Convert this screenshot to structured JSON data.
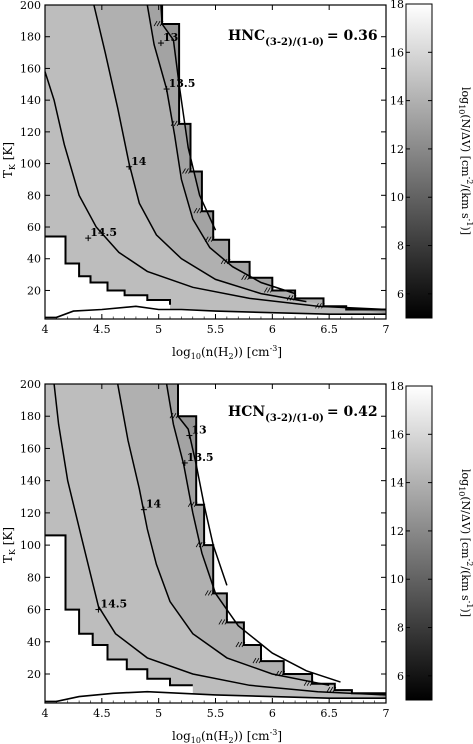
{
  "chart_data": [
    {
      "type": "contour",
      "title": "",
      "annotation": {
        "species": "HNC",
        "subscript": "(3-2)/(1-0)",
        "value": "= 0.36"
      },
      "xlabel": {
        "pre": "log",
        "sub1": "10",
        "mid": "(n(H",
        "sub2": "2",
        "post": ")) [cm",
        "sup": "-3",
        "end": "]"
      },
      "ylabel": {
        "pre": "T",
        "sub": "K",
        "post": " [K]"
      },
      "xlim": [
        4,
        7
      ],
      "ylim": [
        2,
        200
      ],
      "xticks": [
        "4",
        "4.5",
        "5",
        "5.5",
        "6",
        "6.5",
        "7"
      ],
      "yticks": [
        "20",
        "40",
        "60",
        "80",
        "100",
        "120",
        "140",
        "160",
        "180",
        "200"
      ],
      "contour_levels": [
        {
          "label": "13",
          "x": 5.02,
          "y": 176
        },
        {
          "label": "13.5",
          "x": 5.07,
          "y": 147
        },
        {
          "label": "14",
          "x": 4.74,
          "y": 98
        },
        {
          "label": "14.5",
          "x": 4.38,
          "y": 53
        }
      ],
      "boundary_low": [
        [
          4.0,
          3
        ],
        [
          4.1,
          3
        ],
        [
          4.25,
          7
        ],
        [
          4.5,
          8
        ],
        [
          4.8,
          10
        ],
        [
          5.0,
          8
        ],
        [
          5.2,
          8
        ],
        [
          5.5,
          7
        ],
        [
          6.0,
          6
        ],
        [
          6.5,
          5
        ],
        [
          7.0,
          5
        ]
      ],
      "boundary_left": [
        [
          4.0,
          54
        ],
        [
          4.18,
          54
        ],
        [
          4.18,
          37
        ],
        [
          4.3,
          37
        ],
        [
          4.3,
          29
        ],
        [
          4.4,
          29
        ],
        [
          4.4,
          25
        ],
        [
          4.55,
          25
        ],
        [
          4.55,
          20
        ],
        [
          4.7,
          20
        ],
        [
          4.7,
          17
        ],
        [
          4.9,
          17
        ],
        [
          4.9,
          14
        ],
        [
          5.1,
          14
        ],
        [
          5.1,
          11
        ]
      ],
      "boundary_right": [
        [
          5.03,
          200
        ],
        [
          5.03,
          188
        ],
        [
          5.18,
          188
        ],
        [
          5.18,
          125
        ],
        [
          5.28,
          125
        ],
        [
          5.28,
          95
        ],
        [
          5.38,
          95
        ],
        [
          5.38,
          70
        ],
        [
          5.48,
          70
        ],
        [
          5.48,
          52
        ],
        [
          5.62,
          52
        ],
        [
          5.62,
          38
        ],
        [
          5.8,
          38
        ],
        [
          5.8,
          28
        ],
        [
          6.0,
          28
        ],
        [
          6.0,
          20
        ],
        [
          6.2,
          20
        ],
        [
          6.2,
          15
        ],
        [
          6.45,
          15
        ],
        [
          6.45,
          10
        ],
        [
          6.65,
          10
        ],
        [
          6.65,
          8
        ],
        [
          7.0,
          8
        ]
      ],
      "contours": [
        [
          [
            4.0,
            158
          ],
          [
            4.08,
            140
          ],
          [
            4.17,
            112
          ],
          [
            4.3,
            80
          ],
          [
            4.45,
            60
          ],
          [
            4.65,
            44
          ],
          [
            4.9,
            32
          ],
          [
            5.3,
            22
          ],
          [
            5.8,
            15
          ],
          [
            6.4,
            10
          ],
          [
            7.0,
            8
          ]
        ],
        [
          [
            4.43,
            200
          ],
          [
            4.53,
            170
          ],
          [
            4.64,
            135
          ],
          [
            4.74,
            100
          ],
          [
            4.83,
            75
          ],
          [
            4.98,
            55
          ],
          [
            5.2,
            40
          ],
          [
            5.5,
            27
          ],
          [
            5.9,
            18
          ],
          [
            6.3,
            13
          ]
        ],
        [
          [
            4.9,
            200
          ],
          [
            4.96,
            175
          ],
          [
            5.07,
            147
          ],
          [
            5.14,
            118
          ],
          [
            5.2,
            90
          ],
          [
            5.3,
            65
          ],
          [
            5.45,
            47
          ],
          [
            5.65,
            35
          ],
          [
            5.9,
            25
          ],
          [
            6.2,
            18
          ]
        ],
        [
          [
            5.02,
            200
          ],
          [
            5.03,
            188
          ],
          [
            5.13,
            178
          ],
          [
            5.18,
            150
          ],
          [
            5.26,
            110
          ],
          [
            5.36,
            80
          ],
          [
            5.5,
            58
          ]
        ]
      ]
    },
    {
      "type": "contour",
      "title": "",
      "annotation": {
        "species": "HCN",
        "subscript": "(3-2)/(1-0)",
        "value": "= 0.42"
      },
      "xlabel": {
        "pre": "log",
        "sub1": "10",
        "mid": "(n(H",
        "sub2": "2",
        "post": ")) [cm",
        "sup": "-3",
        "end": "]"
      },
      "ylabel": {
        "pre": "T",
        "sub": "K",
        "post": " [K]"
      },
      "xlim": [
        4,
        7
      ],
      "ylim": [
        2,
        200
      ],
      "xticks": [
        "4",
        "4.5",
        "5",
        "5.5",
        "6",
        "6.5",
        "7"
      ],
      "yticks": [
        "20",
        "40",
        "60",
        "80",
        "100",
        "120",
        "140",
        "160",
        "180",
        "200"
      ],
      "contour_levels": [
        {
          "label": "13",
          "x": 5.27,
          "y": 168
        },
        {
          "label": "13.5",
          "x": 5.23,
          "y": 151
        },
        {
          "label": "14",
          "x": 4.87,
          "y": 122
        },
        {
          "label": "14.5",
          "x": 4.47,
          "y": 60
        }
      ],
      "boundary_low": [
        [
          4.0,
          3
        ],
        [
          4.1,
          3
        ],
        [
          4.3,
          6
        ],
        [
          4.6,
          8
        ],
        [
          4.9,
          9
        ],
        [
          5.2,
          8
        ],
        [
          5.5,
          7
        ],
        [
          6.0,
          6
        ],
        [
          6.5,
          5
        ],
        [
          7.0,
          5
        ]
      ],
      "boundary_left": [
        [
          4.0,
          106
        ],
        [
          4.18,
          106
        ],
        [
          4.18,
          60
        ],
        [
          4.3,
          60
        ],
        [
          4.3,
          45
        ],
        [
          4.42,
          45
        ],
        [
          4.42,
          38
        ],
        [
          4.55,
          38
        ],
        [
          4.55,
          29
        ],
        [
          4.72,
          29
        ],
        [
          4.72,
          23
        ],
        [
          4.9,
          23
        ],
        [
          4.9,
          17
        ],
        [
          5.1,
          17
        ],
        [
          5.1,
          13
        ],
        [
          5.3,
          13
        ]
      ],
      "boundary_right": [
        [
          5.17,
          200
        ],
        [
          5.17,
          180
        ],
        [
          5.33,
          180
        ],
        [
          5.33,
          125
        ],
        [
          5.4,
          125
        ],
        [
          5.4,
          100
        ],
        [
          5.48,
          100
        ],
        [
          5.48,
          70
        ],
        [
          5.6,
          70
        ],
        [
          5.6,
          52
        ],
        [
          5.75,
          52
        ],
        [
          5.75,
          38
        ],
        [
          5.9,
          38
        ],
        [
          5.9,
          28
        ],
        [
          6.1,
          28
        ],
        [
          6.1,
          20
        ],
        [
          6.35,
          20
        ],
        [
          6.35,
          14
        ],
        [
          6.55,
          14
        ],
        [
          6.55,
          10
        ],
        [
          6.7,
          10
        ],
        [
          6.7,
          8
        ],
        [
          7.0,
          8
        ]
      ],
      "contours": [
        [
          [
            4.08,
            200
          ],
          [
            4.12,
            175
          ],
          [
            4.2,
            140
          ],
          [
            4.32,
            105
          ],
          [
            4.47,
            62
          ],
          [
            4.62,
            45
          ],
          [
            4.9,
            30
          ],
          [
            5.3,
            20
          ],
          [
            5.8,
            13
          ],
          [
            6.4,
            9
          ],
          [
            7.0,
            7
          ]
        ],
        [
          [
            4.64,
            200
          ],
          [
            4.73,
            165
          ],
          [
            4.83,
            135
          ],
          [
            4.9,
            110
          ],
          [
            4.98,
            88
          ],
          [
            5.1,
            65
          ],
          [
            5.3,
            45
          ],
          [
            5.6,
            30
          ],
          [
            6.0,
            20
          ],
          [
            6.5,
            13
          ]
        ],
        [
          [
            5.07,
            200
          ],
          [
            5.13,
            175
          ],
          [
            5.22,
            150
          ],
          [
            5.3,
            120
          ],
          [
            5.38,
            95
          ],
          [
            5.5,
            70
          ],
          [
            5.7,
            50
          ],
          [
            6.0,
            33
          ],
          [
            6.3,
            22
          ],
          [
            6.6,
            15
          ]
        ],
        [
          [
            5.17,
            200
          ],
          [
            5.17,
            180
          ],
          [
            5.26,
            172
          ],
          [
            5.33,
            150
          ],
          [
            5.4,
            125
          ],
          [
            5.48,
            100
          ],
          [
            5.6,
            75
          ]
        ]
      ]
    }
  ],
  "colorbar": {
    "label": {
      "pre": "log",
      "sub1": "10",
      "mid": "(N/ΔV) [cm",
      "sup1": "-2",
      "mid2": "/(km s",
      "sup2": "-1",
      "end": ")]"
    },
    "range": [
      5,
      18
    ],
    "ticks": [
      "6",
      "8",
      "10",
      "12",
      "14",
      "16",
      "18"
    ],
    "gradient_dark": "#000000",
    "gradient_light": "#ffffff"
  },
  "colors": {
    "band_1": "#bdbdbd",
    "band_2": "#b0b0b0",
    "band_3": "#a3a3a3",
    "band_4": "#959595",
    "outside": "#ffffff",
    "line": "#000000"
  }
}
